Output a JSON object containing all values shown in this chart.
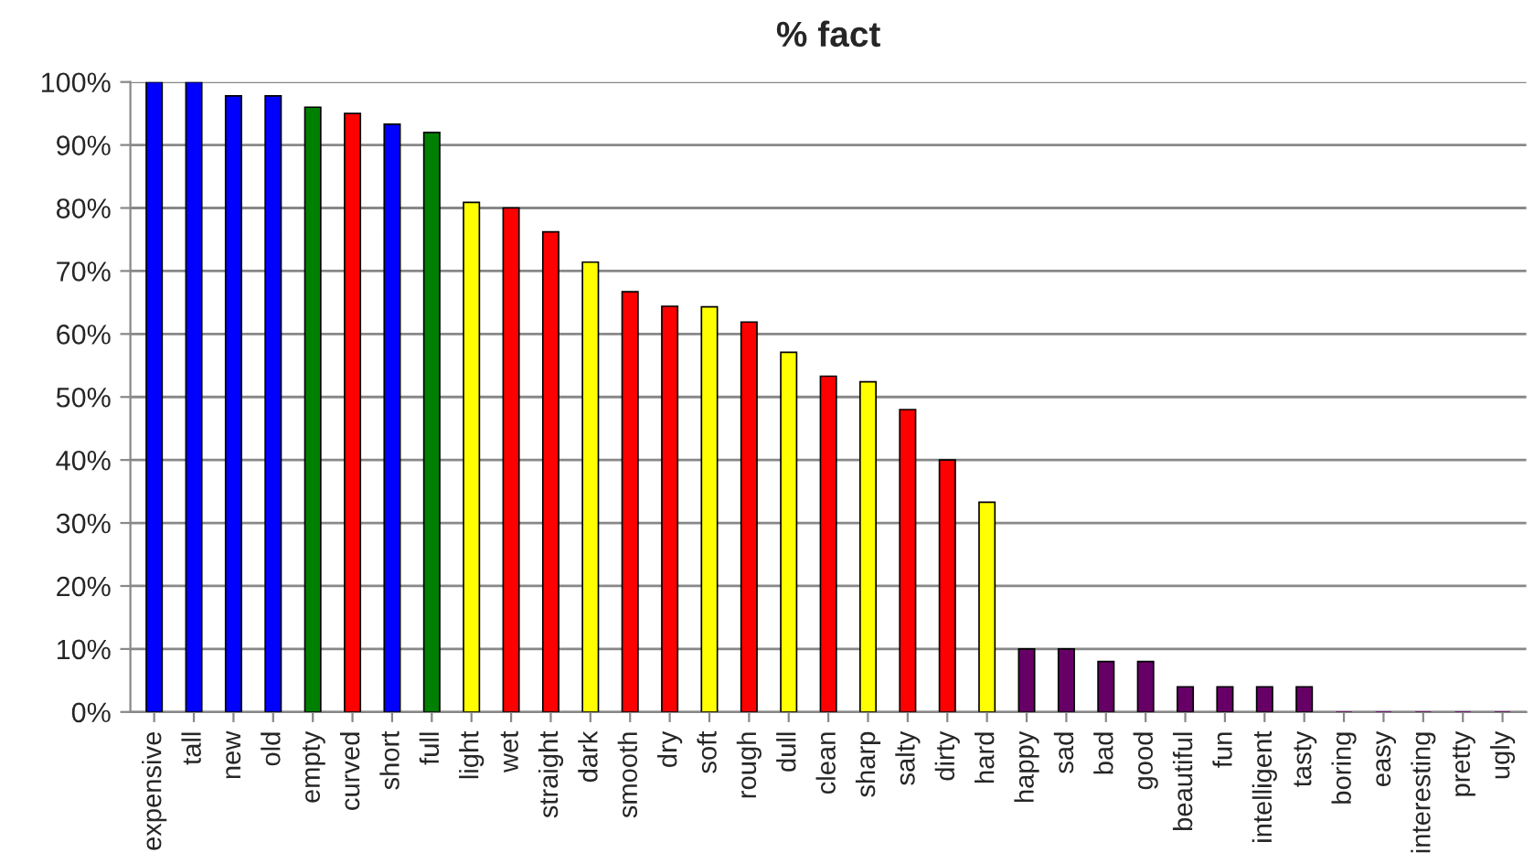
{
  "chart_data": {
    "type": "bar",
    "title": "% fact",
    "categories": [
      "expensive",
      "tall",
      "new",
      "old",
      "empty",
      "curved",
      "short",
      "full",
      "light",
      "wet",
      "straight",
      "dark",
      "smooth",
      "dry",
      "soft",
      "rough",
      "dull",
      "clean",
      "sharp",
      "salty",
      "dirty",
      "hard",
      "happy",
      "sad",
      "bad",
      "good",
      "beautiful",
      "fun",
      "intelligent",
      "tasty",
      "boring",
      "easy",
      "interesting",
      "pretty",
      "ugly"
    ],
    "values": [
      100,
      100,
      97.8,
      97.8,
      96,
      95,
      93.3,
      92,
      80.9,
      80,
      76.2,
      71.4,
      66.7,
      64.4,
      64.3,
      61.9,
      57.1,
      53.3,
      52.4,
      48,
      40,
      33.3,
      10,
      10,
      8,
      8,
      4,
      4,
      4,
      4,
      0,
      0,
      0,
      0,
      0
    ],
    "colors": [
      "#0000ff",
      "#0000ff",
      "#0000ff",
      "#0000ff",
      "#008000",
      "#ff0000",
      "#0000ff",
      "#008000",
      "#ffff00",
      "#ff0000",
      "#ff0000",
      "#ffff00",
      "#ff0000",
      "#ff0000",
      "#ffff00",
      "#ff0000",
      "#ffff00",
      "#ff0000",
      "#ffff00",
      "#ff0000",
      "#ff0000",
      "#ffff00",
      "#660066",
      "#660066",
      "#660066",
      "#660066",
      "#660066",
      "#660066",
      "#660066",
      "#660066",
      "#660066",
      "#660066",
      "#660066",
      "#660066",
      "#660066"
    ],
    "ylim": [
      0,
      100
    ],
    "yticks": [
      {
        "value": 0,
        "label": "0%"
      },
      {
        "value": 10,
        "label": "10%"
      },
      {
        "value": 20,
        "label": "20%"
      },
      {
        "value": 30,
        "label": "30%"
      },
      {
        "value": 40,
        "label": "40%"
      },
      {
        "value": 50,
        "label": "50%"
      },
      {
        "value": 60,
        "label": "60%"
      },
      {
        "value": 70,
        "label": "70%"
      },
      {
        "value": 80,
        "label": "80%"
      },
      {
        "value": 90,
        "label": "90%"
      },
      {
        "value": 100,
        "label": "100%"
      }
    ],
    "grid": "y",
    "legend": false
  }
}
